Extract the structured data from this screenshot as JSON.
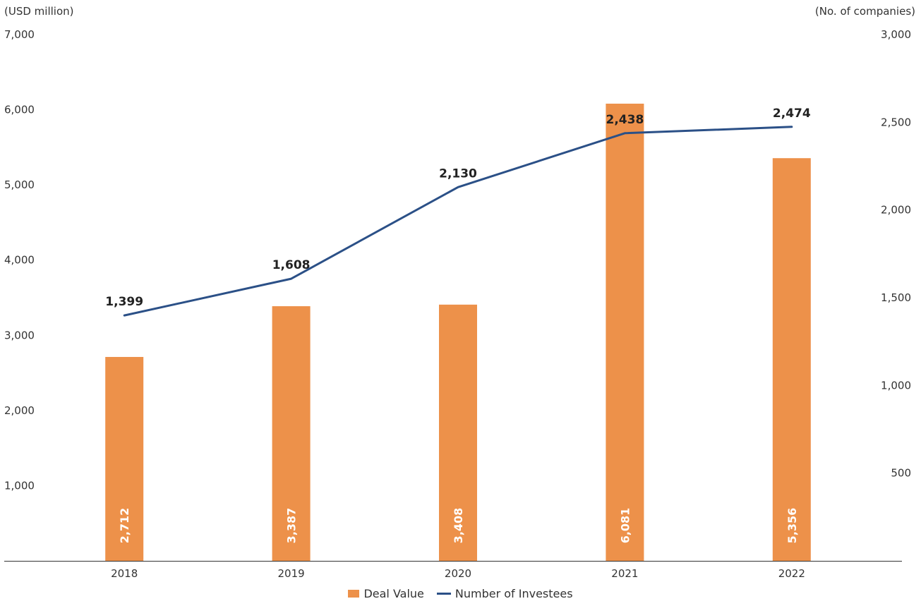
{
  "chart_data": {
    "type": "bar+line",
    "categories": [
      "2018",
      "2019",
      "2020",
      "2021",
      "2022"
    ],
    "bar_series": {
      "name": "Deal Value",
      "values": [
        2712,
        3387,
        3408,
        6081,
        5356
      ],
      "labels": [
        "2,712",
        "3,387",
        "3,408",
        "6,081",
        "5,356"
      ],
      "color": "#ED914A"
    },
    "line_series": {
      "name": "Number of Investees",
      "values": [
        1399,
        1608,
        2130,
        2438,
        2474
      ],
      "labels": [
        "1,399",
        "1,608",
        "2,130",
        "2,438",
        "2,474"
      ],
      "color": "#2B5087"
    },
    "y_left": {
      "unit": "(USD million)",
      "lim": [
        0,
        7000
      ],
      "ticks": [
        "1,000",
        "2,000",
        "3,000",
        "4,000",
        "5,000",
        "6,000",
        "7,000"
      ],
      "tick_values": [
        1000,
        2000,
        3000,
        4000,
        5000,
        6000,
        7000
      ]
    },
    "y_right": {
      "unit": "(No. of companies)",
      "lim": [
        0,
        3000
      ],
      "ticks": [
        "500",
        "1,000",
        "1,500",
        "2,000",
        "2,500",
        "3,000"
      ],
      "tick_values": [
        500,
        1000,
        1500,
        2000,
        2500,
        3000
      ]
    },
    "grid": false,
    "legend_position": "bottom-center"
  }
}
